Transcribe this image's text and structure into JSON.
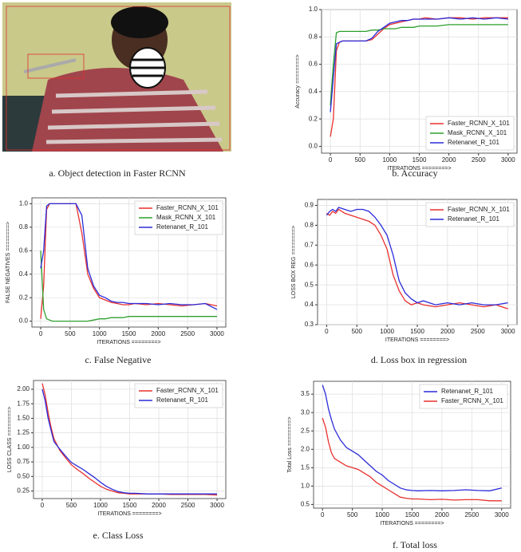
{
  "photo": {
    "caption": "a. Object detection in Faster RCNN"
  },
  "chart_data": [
    {
      "type": "line",
      "caption": "b. Accuracy",
      "xlabel": "ITERATIONS ========>",
      "ylabel": "Accuracy ========>",
      "x": [
        0,
        50,
        100,
        150,
        200,
        300,
        400,
        500,
        600,
        700,
        800,
        900,
        1000,
        1100,
        1200,
        1300,
        1400,
        1500,
        1600,
        1800,
        2000,
        2200,
        2400,
        2600,
        2800,
        3000
      ],
      "xlim": [
        -150,
        3150
      ],
      "xticks": [
        0,
        500,
        1000,
        1500,
        2000,
        2500,
        3000
      ],
      "ylim": [
        -0.05,
        1.0
      ],
      "yticks": [
        {
          "value": 0,
          "label": "0.0"
        },
        0.2,
        0.4,
        0.6,
        0.8,
        {
          "value": 1,
          "label": "1.0"
        }
      ],
      "grid": true,
      "legend": "lower right",
      "series": [
        {
          "name": "Faster_RCNN_X_101",
          "color": "#e8312f",
          "values": [
            0.07,
            0.2,
            0.7,
            0.76,
            0.77,
            0.77,
            0.77,
            0.77,
            0.77,
            0.78,
            0.82,
            0.86,
            0.89,
            0.9,
            0.91,
            0.92,
            0.93,
            0.93,
            0.94,
            0.93,
            0.94,
            0.94,
            0.93,
            0.94,
            0.94,
            0.94
          ]
        },
        {
          "name": "Mask_RCNN_X_101",
          "color": "#2ca02c",
          "values": [
            0.3,
            0.6,
            0.83,
            0.84,
            0.84,
            0.84,
            0.84,
            0.84,
            0.84,
            0.85,
            0.85,
            0.86,
            0.86,
            0.86,
            0.87,
            0.87,
            0.87,
            0.88,
            0.88,
            0.88,
            0.89,
            0.89,
            0.89,
            0.89,
            0.89,
            0.89
          ]
        },
        {
          "name": "Retenanet_R_101",
          "color": "#2b2bd9",
          "values": [
            0.25,
            0.5,
            0.75,
            0.76,
            0.77,
            0.77,
            0.77,
            0.77,
            0.77,
            0.79,
            0.84,
            0.87,
            0.9,
            0.91,
            0.92,
            0.92,
            0.93,
            0.93,
            0.93,
            0.93,
            0.94,
            0.93,
            0.94,
            0.93,
            0.94,
            0.93
          ]
        }
      ]
    },
    {
      "type": "line",
      "caption": "c. False Negative",
      "xlabel": "ITERATIONS ========>",
      "ylabel": "FALSE NEGATIVES ========>",
      "x": [
        0,
        50,
        100,
        150,
        200,
        300,
        400,
        500,
        600,
        700,
        800,
        900,
        1000,
        1100,
        1200,
        1300,
        1400,
        1500,
        1600,
        1800,
        2000,
        2200,
        2400,
        2600,
        2800,
        3000
      ],
      "xlim": [
        -150,
        3150
      ],
      "xticks": [
        0,
        500,
        1000,
        1500,
        2000,
        2500,
        3000
      ],
      "ylim": [
        -0.05,
        1.05
      ],
      "yticks": [
        {
          "value": 0,
          "label": "0.0"
        },
        0.2,
        0.4,
        0.6,
        0.8,
        {
          "value": 1,
          "label": "1.0"
        }
      ],
      "grid": true,
      "legend": "upper right",
      "series": [
        {
          "name": "Faster_RCNN_X_101",
          "color": "#e8312f",
          "values": [
            0.02,
            0.3,
            0.95,
            1,
            1,
            1,
            1,
            1,
            1,
            0.75,
            0.4,
            0.28,
            0.2,
            0.18,
            0.16,
            0.15,
            0.14,
            0.14,
            0.15,
            0.14,
            0.15,
            0.14,
            0.13,
            0.14,
            0.15,
            0.13
          ]
        },
        {
          "name": "Mask_RCNN_X_101",
          "color": "#2ca02c",
          "values": [
            0.6,
            0.1,
            0.02,
            0.01,
            0,
            0,
            0,
            0,
            0,
            0,
            0,
            0.01,
            0.02,
            0.02,
            0.03,
            0.03,
            0.03,
            0.04,
            0.04,
            0.04,
            0.04,
            0.04,
            0.04,
            0.04,
            0.04,
            0.04
          ]
        },
        {
          "name": "Retenanet_R_101",
          "color": "#2b2bd9",
          "values": [
            0.45,
            0.6,
            0.98,
            1,
            1,
            1,
            1,
            1,
            1,
            0.9,
            0.45,
            0.3,
            0.22,
            0.2,
            0.17,
            0.16,
            0.16,
            0.15,
            0.15,
            0.15,
            0.14,
            0.15,
            0.14,
            0.14,
            0.15,
            0.1
          ]
        }
      ]
    },
    {
      "type": "line",
      "caption": "d. Loss box in  regression",
      "xlabel": "ITERATIONS ========>",
      "ylabel": "LOSS BOX REG ========>",
      "x": [
        0,
        50,
        100,
        150,
        200,
        300,
        400,
        500,
        600,
        700,
        800,
        900,
        1000,
        1100,
        1200,
        1300,
        1400,
        1500,
        1600,
        1800,
        2000,
        2200,
        2400,
        2600,
        2800,
        3000
      ],
      "xlim": [
        -150,
        3150
      ],
      "xticks": [
        0,
        500,
        1000,
        1500,
        2000,
        2500,
        3000
      ],
      "ylim": [
        0.3,
        0.93
      ],
      "yticks": [
        0.3,
        0.4,
        0.5,
        0.6,
        0.7,
        0.8,
        0.9
      ],
      "grid": true,
      "legend": "upper right",
      "series": [
        {
          "name": "Faster_RCNN_X_101",
          "color": "#e8312f",
          "values": [
            0.86,
            0.85,
            0.87,
            0.86,
            0.88,
            0.86,
            0.85,
            0.84,
            0.83,
            0.82,
            0.8,
            0.75,
            0.68,
            0.55,
            0.47,
            0.42,
            0.4,
            0.41,
            0.4,
            0.39,
            0.4,
            0.41,
            0.4,
            0.39,
            0.4,
            0.38
          ]
        },
        {
          "name": "Retenanet_R_101",
          "color": "#2b2bd9",
          "values": [
            0.85,
            0.87,
            0.88,
            0.87,
            0.89,
            0.88,
            0.87,
            0.88,
            0.88,
            0.87,
            0.84,
            0.8,
            0.75,
            0.65,
            0.52,
            0.46,
            0.43,
            0.41,
            0.42,
            0.4,
            0.41,
            0.4,
            0.41,
            0.4,
            0.4,
            0.41
          ]
        }
      ]
    },
    {
      "type": "line",
      "caption": "e. Class Loss",
      "xlabel": "ITERATIONS ========>",
      "ylabel": "LOSS CLASS ========>",
      "x": [
        0,
        50,
        100,
        150,
        200,
        300,
        400,
        500,
        600,
        700,
        800,
        900,
        1000,
        1100,
        1200,
        1300,
        1400,
        1500,
        1600,
        1800,
        2000,
        2200,
        2400,
        2600,
        2800,
        3000
      ],
      "xlim": [
        -150,
        3150
      ],
      "xticks": [
        0,
        500,
        1000,
        1500,
        2000,
        2500,
        3000
      ],
      "ylim": [
        0.12,
        2.15
      ],
      "yticks": [
        0.25,
        {
          "value": 0.5,
          "label": "0.50"
        },
        0.75,
        {
          "value": 1,
          "label": "1.00"
        },
        1.25,
        {
          "value": 1.5,
          "label": "1.50"
        },
        1.75,
        {
          "value": 2,
          "label": "2.00"
        }
      ],
      "grid": true,
      "legend": "upper right",
      "series": [
        {
          "name": "Faster_RCNN_X_101",
          "color": "#e8312f",
          "values": [
            2.1,
            1.9,
            1.6,
            1.35,
            1.15,
            0.95,
            0.82,
            0.7,
            0.62,
            0.55,
            0.47,
            0.4,
            0.33,
            0.28,
            0.25,
            0.22,
            0.21,
            0.2,
            0.2,
            0.2,
            0.2,
            0.19,
            0.19,
            0.19,
            0.19,
            0.18
          ]
        },
        {
          "name": "Retenanet_R_101",
          "color": "#2b2bd9",
          "values": [
            2.0,
            1.8,
            1.5,
            1.3,
            1.1,
            0.97,
            0.85,
            0.74,
            0.68,
            0.62,
            0.55,
            0.48,
            0.4,
            0.33,
            0.28,
            0.24,
            0.22,
            0.21,
            0.21,
            0.2,
            0.2,
            0.2,
            0.2,
            0.2,
            0.2,
            0.2
          ]
        }
      ]
    },
    {
      "type": "line",
      "caption": "f. Total loss",
      "xlabel": "ITERATIONS ========>",
      "ylabel": "Total Loss ========>",
      "x": [
        0,
        50,
        100,
        150,
        200,
        300,
        400,
        500,
        600,
        700,
        800,
        900,
        1000,
        1100,
        1200,
        1300,
        1400,
        1500,
        1600,
        1800,
        2000,
        2200,
        2400,
        2600,
        2800,
        3000
      ],
      "xlim": [
        -150,
        3150
      ],
      "xticks": [
        0,
        500,
        1000,
        1500,
        2000,
        2500,
        3000
      ],
      "ylim": [
        0.4,
        3.85
      ],
      "yticks": [
        0.5,
        {
          "value": 1,
          "label": "1.0"
        },
        1.5,
        {
          "value": 2,
          "label": "2.0"
        },
        2.5,
        {
          "value": 3,
          "label": "3.0"
        },
        3.5
      ],
      "grid": true,
      "legend": "upper right",
      "series": [
        {
          "name": "Retenanet_R_101",
          "color": "#2b2bd9",
          "values": [
            3.75,
            3.5,
            3.1,
            2.8,
            2.55,
            2.25,
            2.05,
            1.95,
            1.85,
            1.7,
            1.55,
            1.4,
            1.3,
            1.15,
            1.05,
            0.95,
            0.9,
            0.88,
            0.87,
            0.88,
            0.87,
            0.88,
            0.9,
            0.88,
            0.87,
            0.95
          ]
        },
        {
          "name": "Faster_RCNN_X_101",
          "color": "#e8312f",
          "values": [
            2.85,
            2.6,
            2.2,
            1.9,
            1.75,
            1.65,
            1.55,
            1.5,
            1.45,
            1.35,
            1.25,
            1.1,
            1.0,
            0.9,
            0.8,
            0.7,
            0.67,
            0.65,
            0.65,
            0.63,
            0.64,
            0.62,
            0.63,
            0.63,
            0.6,
            0.6
          ]
        }
      ]
    }
  ]
}
